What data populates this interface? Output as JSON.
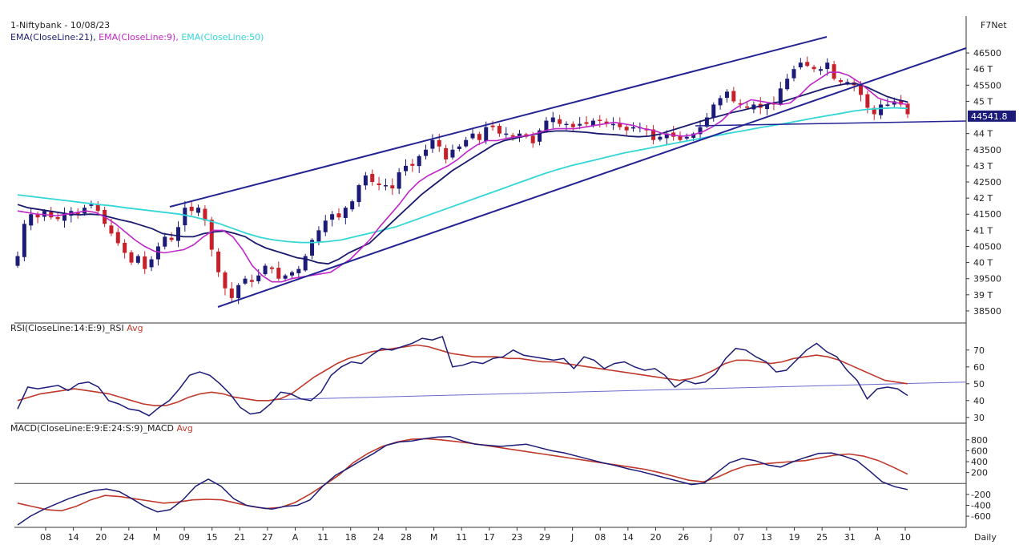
{
  "header": {
    "title": "1-Niftybank - 10/08/23",
    "brand": "F7Net",
    "ema_legend": [
      {
        "label": "EMA(CloseLine:21)",
        "color": "#1a1a6e"
      },
      {
        "label": "EMA(CloseLine:9)",
        "color": "#c026c8"
      },
      {
        "label": "EMA(CloseLine:50)",
        "color": "#33d6d6"
      }
    ],
    "price_marker": "44541.8",
    "period_label": "Daily"
  },
  "colors": {
    "up_candle": "#1c1c78",
    "down_candle": "#c8202a",
    "trendline": "#232394",
    "rsi_line": "#1c1c78",
    "rsi_avg": "#c0392b",
    "macd_line": "#1c1c78",
    "macd_avg": "#c0392b",
    "zero_line": "#444444",
    "rsi_support": "#6a6ad0"
  },
  "x_tick_labels": [
    "08",
    "14",
    "20",
    "24",
    "M",
    "09",
    "15",
    "21",
    "27",
    "A",
    "11",
    "18",
    "24",
    "28",
    "M",
    "11",
    "17",
    "23",
    "29",
    "J",
    "08",
    "14",
    "20",
    "26",
    "J",
    "07",
    "13",
    "19",
    "25",
    "31",
    "A",
    "10"
  ],
  "chart_data": [
    {
      "type": "candlestick",
      "title": "1-Niftybank - 10/08/23",
      "indicators": [
        "EMA(CloseLine:21)",
        "EMA(CloseLine:9)",
        "EMA(CloseLine:50)"
      ],
      "y_tick_labels": [
        "46500",
        "46 T",
        "45500",
        "45 T",
        "44 T",
        "43500",
        "43 T",
        "42500",
        "42 T",
        "41500",
        "41 T",
        "40500",
        "40 T",
        "39500",
        "39 T",
        "38500"
      ],
      "y_ticks": [
        46500,
        46000,
        45500,
        45000,
        44000,
        43500,
        43000,
        42500,
        42000,
        41500,
        41000,
        40500,
        40000,
        39500,
        39000,
        38500
      ],
      "ylim": [
        38200,
        46900
      ],
      "last_price": 44541.8,
      "close": [
        40200,
        41200,
        41500,
        41400,
        41600,
        41400,
        41350,
        41500,
        41600,
        41500,
        41700,
        41800,
        41600,
        41200,
        40900,
        40600,
        40300,
        40000,
        40200,
        39800,
        40100,
        40500,
        40800,
        40700,
        41100,
        41700,
        41600,
        41700,
        41300,
        40400,
        39700,
        39200,
        38900,
        39300,
        39500,
        39400,
        39600,
        39900,
        39800,
        39500,
        39600,
        39700,
        39800,
        40200,
        40700,
        41000,
        41300,
        41500,
        41400,
        41700,
        41900,
        42400,
        42700,
        42500,
        42400,
        42400,
        42300,
        42800,
        43000,
        43000,
        43300,
        43500,
        43800,
        43600,
        43200,
        43500,
        43600,
        43800,
        44000,
        43800,
        44200,
        44200,
        44000,
        44000,
        43900,
        44000,
        43900,
        43700,
        44100,
        44400,
        44500,
        44300,
        44300,
        44200,
        44300,
        44300,
        44400,
        44400,
        44300,
        44300,
        44200,
        44100,
        44200,
        44200,
        44100,
        43800,
        43900,
        44000,
        43900,
        43800,
        43900,
        44000,
        44200,
        44500,
        44900,
        45100,
        45300,
        45000,
        44900,
        44800,
        44900,
        44800,
        44900,
        44900,
        45400,
        45700,
        46000,
        46200,
        46100,
        46000,
        46000,
        46200,
        45700,
        45600,
        45600,
        45500,
        45200,
        44800,
        44600,
        44900,
        44900,
        45000,
        44900,
        44600
      ],
      "ema21": [
        41800,
        41700,
        41650,
        41600,
        41550,
        41500,
        41480,
        41500,
        41480,
        41400,
        41320,
        41250,
        41150,
        41050,
        40900,
        40850,
        40800,
        40800,
        40900,
        40950,
        40980,
        40900,
        40800,
        40600,
        40450,
        40350,
        40250,
        40150,
        40100,
        40000,
        39960,
        40100,
        40300,
        40450,
        40600,
        40900,
        41200,
        41500,
        41800,
        42100,
        42350,
        42600,
        42850,
        43050,
        43250,
        43450,
        43650,
        43780,
        43850,
        43920,
        43980,
        44050,
        44080,
        44080,
        44060,
        44040,
        44000,
        43980,
        43960,
        43920,
        43900,
        43920,
        43980,
        44080,
        44180,
        44280,
        44380,
        44480,
        44560,
        44650,
        44720,
        44800,
        44870,
        44950,
        45000,
        45100,
        45200,
        45300,
        45400,
        45480,
        45540,
        45550,
        45450,
        45300,
        45150,
        45050,
        44980
      ],
      "ema9": [
        41600,
        41550,
        41500,
        41480,
        41450,
        41500,
        41550,
        41600,
        41550,
        41400,
        41200,
        40950,
        40700,
        40500,
        40350,
        40300,
        40350,
        40400,
        40550,
        40800,
        41000,
        41000,
        40800,
        40400,
        39900,
        39600,
        39400,
        39400,
        39500,
        39550,
        39600,
        39650,
        39700,
        39900,
        40100,
        40400,
        40700,
        41100,
        41450,
        41800,
        42200,
        42500,
        42700,
        42850,
        43000,
        43200,
        43450,
        43650,
        43780,
        43780,
        43850,
        43900,
        43930,
        44000,
        44100,
        44150,
        44150,
        44150,
        44200,
        44250,
        44300,
        44350,
        44300,
        44250,
        44150,
        44100,
        44000,
        43950,
        43920,
        43960,
        44050,
        44200,
        44400,
        44700,
        44900,
        45050,
        45000,
        44950,
        44900,
        44950,
        45200,
        45500,
        45700,
        45900,
        45900,
        45800,
        45600,
        45350,
        45100,
        45000,
        44950,
        44900
      ],
      "ema50": [
        42100,
        42050,
        42000,
        41950,
        41900,
        41850,
        41800,
        41760,
        41700,
        41650,
        41600,
        41550,
        41500,
        41420,
        41320,
        41200,
        41050,
        40900,
        40780,
        40700,
        40650,
        40620,
        40620,
        40650,
        40700,
        40800,
        40900,
        41000,
        41100,
        41250,
        41400,
        41550,
        41700,
        41850,
        42000,
        42150,
        42300,
        42450,
        42600,
        42750,
        42880,
        43000,
        43100,
        43200,
        43300,
        43400,
        43480,
        43560,
        43640,
        43720,
        43800,
        43880,
        43950,
        44030,
        44100,
        44180,
        44250,
        44320,
        44400,
        44480,
        44550,
        44620,
        44700,
        44750,
        44780,
        44800,
        44780
      ]
    },
    {
      "type": "line",
      "title": "RSI(CloseLine:14:E:9)_RSI Avg",
      "series": [
        {
          "name": "RSI",
          "values": [
            35,
            48,
            47,
            48,
            49,
            46,
            50,
            51,
            48,
            40,
            38,
            35,
            34,
            31,
            36,
            40,
            47,
            55,
            57,
            55,
            50,
            44,
            36,
            32,
            33,
            38,
            45,
            44,
            41,
            40,
            45,
            55,
            60,
            63,
            62,
            67,
            71,
            70,
            72,
            74,
            77,
            76,
            78,
            60,
            61,
            63,
            62,
            65,
            66,
            70,
            67,
            66,
            65,
            64,
            65,
            59,
            66,
            64,
            59,
            62,
            63,
            60,
            58,
            59,
            55,
            48,
            52,
            50,
            51,
            56,
            65,
            71,
            70,
            66,
            63,
            57,
            58,
            64,
            70,
            74,
            69,
            66,
            58,
            52,
            41,
            47,
            48,
            47,
            43
          ]
        },
        {
          "name": "Avg",
          "values": [
            40,
            42,
            44,
            45,
            46,
            47,
            46,
            45,
            44,
            42,
            40,
            38,
            37,
            37,
            39,
            42,
            44,
            45,
            44,
            42,
            41,
            40,
            40,
            41,
            44,
            49,
            54,
            58,
            62,
            65,
            67,
            69,
            70,
            71,
            72,
            73,
            72,
            70,
            68,
            67,
            66,
            66,
            66,
            65,
            65,
            64,
            63,
            63,
            62,
            61,
            60,
            59,
            58,
            57,
            56,
            55,
            54,
            53,
            52,
            53,
            55,
            58,
            62,
            64,
            64,
            63,
            62,
            63,
            65,
            66,
            67,
            66,
            64,
            61,
            58,
            55,
            52,
            51,
            50
          ]
        }
      ],
      "y_tick_labels": [
        "70",
        "60",
        "50",
        "40",
        "30"
      ],
      "y_ticks": [
        70,
        60,
        50,
        40,
        30
      ],
      "ylim": [
        28,
        78
      ]
    },
    {
      "type": "line",
      "title": "MACD(CloseLine:E:9:E:24:S:9)_MACD Avg",
      "series": [
        {
          "name": "MACD",
          "values": [
            -760,
            -600,
            -480,
            -380,
            -280,
            -200,
            -130,
            -100,
            -150,
            -280,
            -420,
            -520,
            -480,
            -300,
            -50,
            80,
            -50,
            -280,
            -400,
            -440,
            -470,
            -420,
            -400,
            -300,
            -50,
            150,
            280,
            420,
            550,
            700,
            760,
            780,
            820,
            850,
            860,
            780,
            720,
            700,
            680,
            700,
            720,
            660,
            600,
            560,
            500,
            440,
            380,
            330,
            270,
            220,
            160,
            100,
            40,
            -20,
            10,
            200,
            380,
            460,
            420,
            340,
            300,
            400,
            480,
            550,
            560,
            500,
            420,
            230,
            30,
            -60,
            -110
          ]
        },
        {
          "name": "Avg",
          "values": [
            -360,
            -420,
            -480,
            -500,
            -420,
            -300,
            -220,
            -240,
            -280,
            -320,
            -360,
            -340,
            -300,
            -290,
            -300,
            -360,
            -420,
            -460,
            -440,
            -350,
            -200,
            -30,
            150,
            380,
            550,
            680,
            760,
            810,
            820,
            800,
            770,
            740,
            700,
            660,
            620,
            580,
            540,
            500,
            460,
            420,
            380,
            340,
            300,
            260,
            200,
            130,
            60,
            30,
            120,
            240,
            330,
            360,
            380,
            400,
            420,
            470,
            520,
            540,
            500,
            420,
            300,
            170
          ]
        }
      ],
      "y_tick_labels": [
        "800",
        "600",
        "400",
        "200",
        "-200",
        "-400",
        "-600"
      ],
      "y_ticks": [
        800,
        600,
        400,
        200,
        -200,
        -400,
        -600
      ],
      "ylim": [
        -760,
        900
      ]
    }
  ]
}
